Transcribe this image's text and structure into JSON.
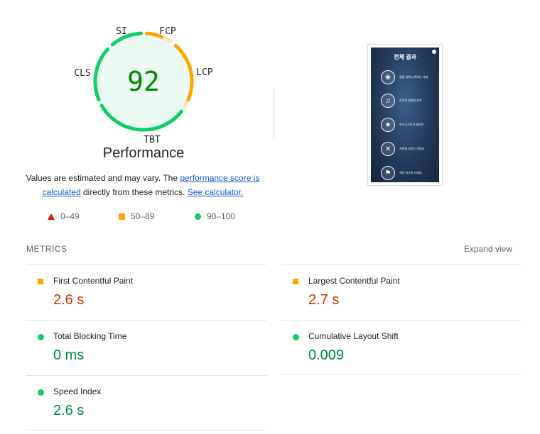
{
  "score": {
    "value": "92",
    "label": "Performance"
  },
  "gauge_labels": {
    "si": "SI",
    "fcp": "FCP",
    "lcp": "LCP",
    "tbt": "TBT",
    "cls": "CLS"
  },
  "colors": {
    "pass": "#0cce6b",
    "average": "#ffa400",
    "fail": "#eb0f00",
    "pass_text": "#018642",
    "average_text": "#c33300",
    "link": "#1a57d6"
  },
  "note": {
    "text1": "Values are estimated and may vary. The ",
    "link1": "performance score is calculated",
    "text2": " directly from these metrics. ",
    "link2": "See calculator."
  },
  "legend": [
    {
      "shape": "triangle",
      "range": "0–49"
    },
    {
      "shape": "square",
      "range": "50–89"
    },
    {
      "shape": "circle",
      "range": "90–100"
    }
  ],
  "screenshot": {
    "title": "전체 결과",
    "items": [
      "정을 위해 노력하는 사제",
      "음악의 영광한 연주",
      "학조무스트과 결인한",
      "자연을 생각는 마법사",
      "색의 마가하 드매닝"
    ],
    "icons": [
      "lotus-icon",
      "music-note-icon",
      "star-icon",
      "crossed-tools-icon",
      "flag-icon"
    ]
  },
  "metrics": {
    "title": "METRICS",
    "expand": "Expand view",
    "items": [
      {
        "name": "First Contentful Paint",
        "value": "2.6 s",
        "status": "average"
      },
      {
        "name": "Largest Contentful Paint",
        "value": "2.7 s",
        "status": "average"
      },
      {
        "name": "Total Blocking Time",
        "value": "0 ms",
        "status": "pass"
      },
      {
        "name": "Cumulative Layout Shift",
        "value": "0.009",
        "status": "pass"
      },
      {
        "name": "Speed Index",
        "value": "2.6 s",
        "status": "pass"
      }
    ]
  }
}
